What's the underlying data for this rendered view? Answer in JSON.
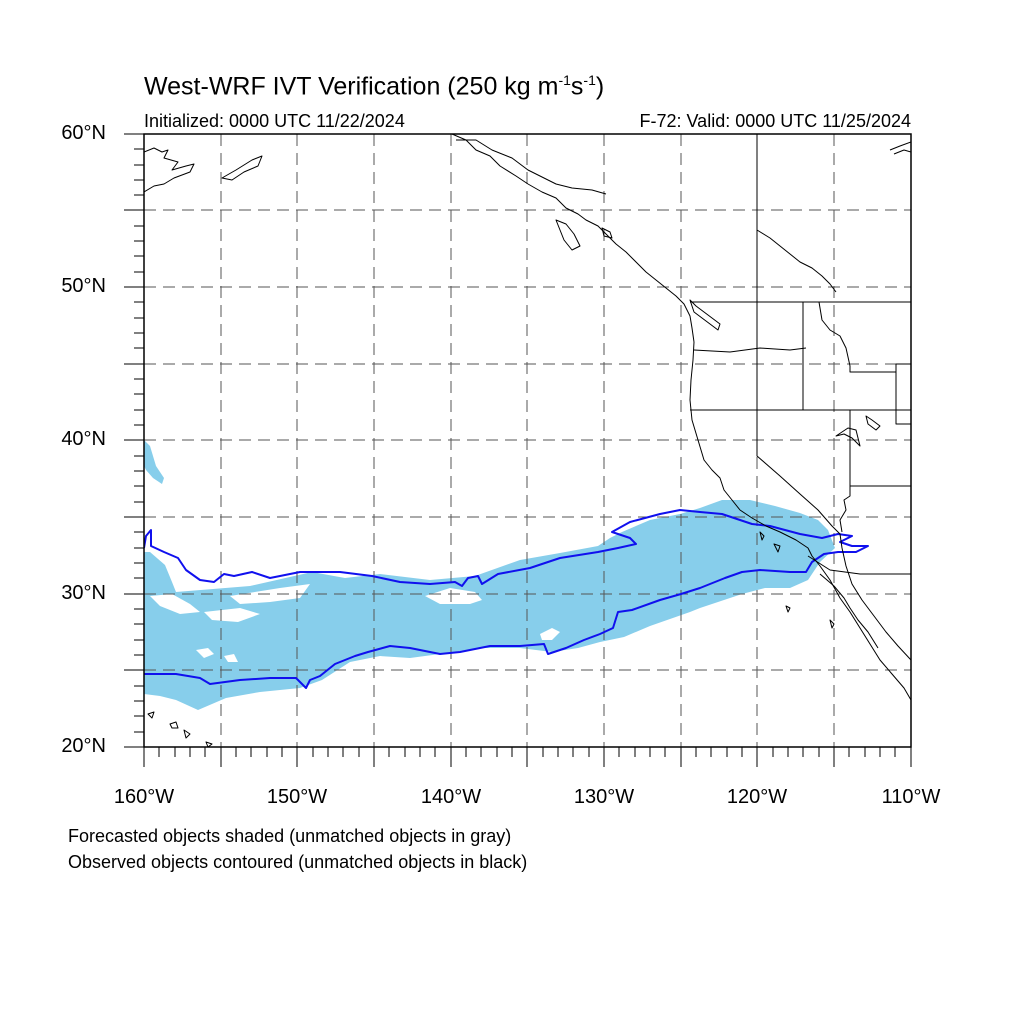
{
  "header": {
    "title_main": "West-WRF IVT Verification (250 kg m",
    "title_exp1": "-1",
    "title_mid": "s",
    "title_exp2": "-1",
    "title_end": ")",
    "initialized": "Initialized: 0000 UTC 11/22/2024",
    "valid": "F-72: Valid: 0000 UTC 11/25/2024"
  },
  "axes": {
    "lat_labels": [
      "60°N",
      "50°N",
      "40°N",
      "30°N",
      "20°N"
    ],
    "lon_labels": [
      "160°W",
      "150°W",
      "140°W",
      "130°W",
      "120°W",
      "110°W"
    ],
    "lat_range": [
      20,
      60
    ],
    "lon_range": [
      -160,
      -110
    ],
    "grid_spacing_deg": 5,
    "grid_style": "dashed"
  },
  "legend": {
    "forecast_note": "Forecasted objects shaded (unmatched objects in gray)",
    "observed_note": "Observed objects contoured (unmatched objects in black)"
  },
  "colors": {
    "forecast_fill": "#87CEEB",
    "observed_contour": "#0000EE",
    "coastline": "#000000",
    "grid": "#555555"
  }
}
